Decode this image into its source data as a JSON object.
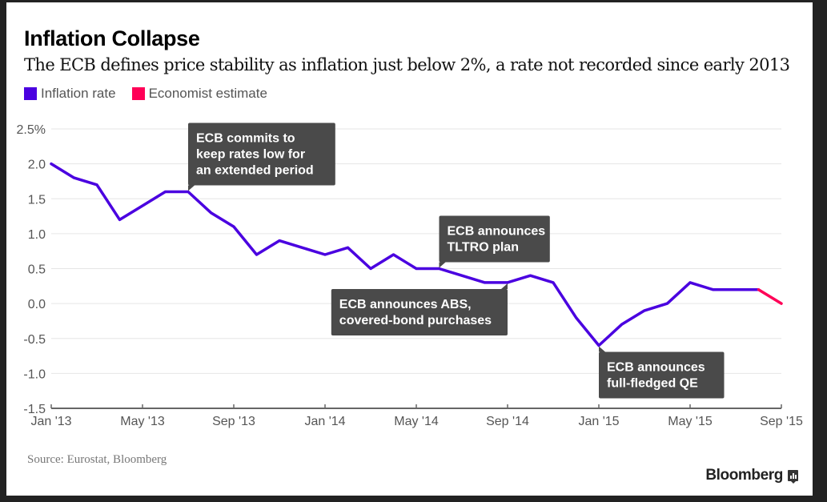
{
  "header": {
    "title": "Inflation Collapse",
    "subtitle": "The ECB defines price stability as inflation just below 2%, a rate not recorded since early 2013"
  },
  "legend": [
    {
      "label": "Inflation rate",
      "color": "#4A00E0"
    },
    {
      "label": "Economist estimate",
      "color": "#FF0057"
    }
  ],
  "footer": {
    "source": "Source: Eurostat, Bloomberg",
    "brand": "Bloomberg"
  },
  "chart_data": {
    "type": "line",
    "title": "Inflation Collapse",
    "subtitle": "The ECB defines price stability as inflation just below 2%, a rate not recorded since early 2013",
    "xlabel": "",
    "ylabel": "",
    "ylim": [
      -1.5,
      2.5
    ],
    "y_ticks": [
      2.5,
      2.0,
      1.5,
      1.0,
      0.5,
      0.0,
      -0.5,
      -1.0,
      -1.5
    ],
    "y_tick_labels": [
      "2.5%",
      "2.0",
      "1.5",
      "1.0",
      "0.5",
      "0.0",
      "-0.5",
      "-1.0",
      "-1.5"
    ],
    "x_start": "Jan 2013",
    "x_end": "Sep 2015",
    "x_tick_months": [
      0,
      4,
      8,
      12,
      16,
      20,
      24,
      28,
      32
    ],
    "x_tick_labels": [
      "Jan '13",
      "May '13",
      "Sep '13",
      "Jan '14",
      "May '14",
      "Sep '14",
      "Jan '15",
      "May '15",
      "Sep '15"
    ],
    "grid": true,
    "legend_position": "top-left",
    "series": [
      {
        "name": "Inflation rate",
        "color": "#4A00E0",
        "start_month": 0,
        "values": [
          2.0,
          1.8,
          1.7,
          1.2,
          1.4,
          1.6,
          1.6,
          1.3,
          1.1,
          0.7,
          0.9,
          0.8,
          0.7,
          0.8,
          0.5,
          0.7,
          0.5,
          0.5,
          0.4,
          0.3,
          0.3,
          0.4,
          0.3,
          -0.2,
          -0.6,
          -0.3,
          -0.1,
          0.0,
          0.3,
          0.2,
          0.2,
          0.2
        ]
      },
      {
        "name": "Economist estimate",
        "color": "#FF0057",
        "start_month": 31,
        "values": [
          0.2,
          0.0
        ]
      }
    ],
    "annotations": [
      {
        "name": "annotation-forward-guidance",
        "lines": [
          "ECB commits to",
          "keep rates low for",
          "an extended period"
        ],
        "month": 6,
        "value": 1.6,
        "placement": "above-right"
      },
      {
        "name": "annotation-tltro",
        "lines": [
          "ECB announces",
          "TLTRO plan"
        ],
        "month": 17,
        "value": 0.5,
        "placement": "above-right"
      },
      {
        "name": "annotation-abs",
        "lines": [
          "ECB announces ABS,",
          "covered-bond purchases"
        ],
        "month": 20,
        "value": 0.3,
        "placement": "below-left"
      },
      {
        "name": "annotation-qe",
        "lines": [
          "ECB announces",
          "full-fledged QE"
        ],
        "month": 24,
        "value": -0.6,
        "placement": "below-right"
      }
    ]
  }
}
